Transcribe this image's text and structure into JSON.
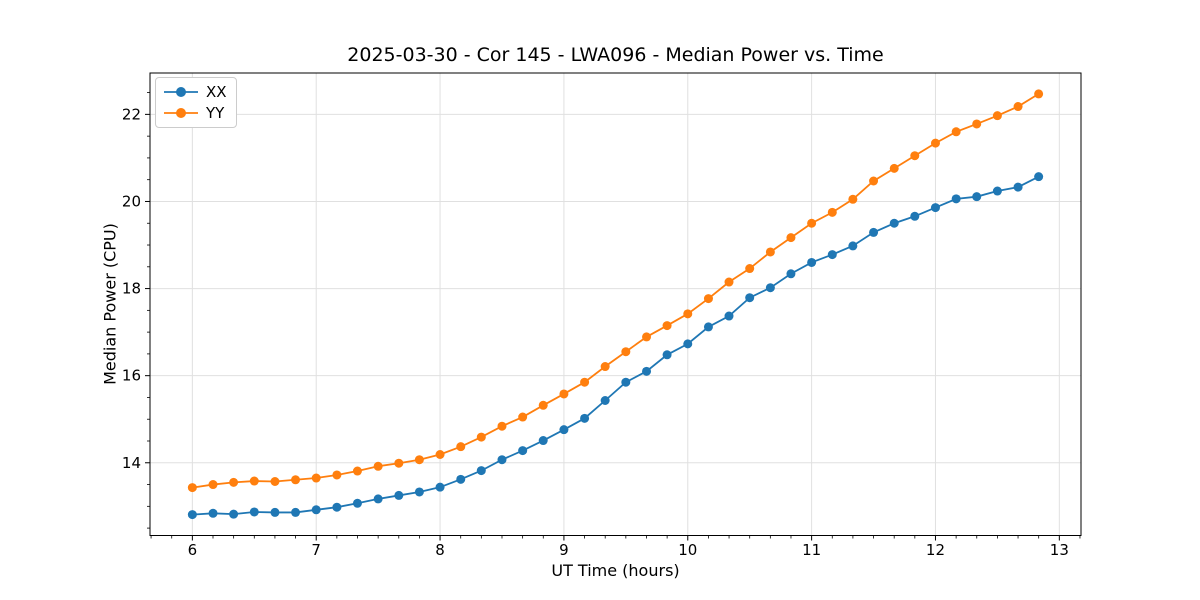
{
  "chart_data": {
    "type": "line",
    "title": "2025-03-30 - Cor 145 - LWA096 - Median Power vs. Time",
    "xlabel": "UT Time (hours)",
    "ylabel": "Median Power (CPU)",
    "x": [
      6.0,
      6.167,
      6.333,
      6.5,
      6.667,
      6.833,
      7.0,
      7.167,
      7.333,
      7.5,
      7.667,
      7.833,
      8.0,
      8.167,
      8.333,
      8.5,
      8.667,
      8.833,
      9.0,
      9.167,
      9.333,
      9.5,
      9.667,
      9.833,
      10.0,
      10.167,
      10.333,
      10.5,
      10.667,
      10.833,
      11.0,
      11.167,
      11.333,
      11.5,
      11.667,
      11.833,
      12.0,
      12.167,
      12.333,
      12.5,
      12.667,
      12.833
    ],
    "series": [
      {
        "name": "XX",
        "color": "#1f77b4",
        "values": [
          12.81,
          12.84,
          12.82,
          12.87,
          12.86,
          12.86,
          12.92,
          12.98,
          13.07,
          13.17,
          13.25,
          13.33,
          13.44,
          13.62,
          13.82,
          14.07,
          14.28,
          14.51,
          14.76,
          15.02,
          15.43,
          15.85,
          16.1,
          16.48,
          16.73,
          17.12,
          17.37,
          17.79,
          18.02,
          18.34,
          18.6,
          18.78,
          18.98,
          19.29,
          19.5,
          19.66,
          19.86,
          20.06,
          20.11,
          20.24,
          20.33,
          20.57
        ]
      },
      {
        "name": "YY",
        "color": "#ff7f0e",
        "values": [
          13.43,
          13.5,
          13.55,
          13.58,
          13.57,
          13.61,
          13.65,
          13.72,
          13.81,
          13.92,
          13.99,
          14.07,
          14.19,
          14.37,
          14.59,
          14.84,
          15.05,
          15.32,
          15.58,
          15.85,
          16.21,
          16.55,
          16.89,
          17.15,
          17.42,
          17.77,
          18.15,
          18.46,
          18.84,
          19.17,
          19.5,
          19.75,
          20.05,
          20.47,
          20.76,
          21.05,
          21.34,
          21.6,
          21.78,
          21.97,
          22.18,
          22.47
        ]
      }
    ],
    "xlim": [
      5.658,
      13.175
    ],
    "ylim": [
      12.33,
      22.95
    ],
    "xticks": [
      6,
      7,
      8,
      9,
      10,
      11,
      12,
      13
    ],
    "yticks": [
      14,
      16,
      18,
      20,
      22
    ],
    "x_minor_step": 0.166667,
    "y_minor_step": 0.5,
    "grid": true,
    "grid_color": "#e0e0e0",
    "legend_position": "upper left",
    "marker": "o"
  }
}
